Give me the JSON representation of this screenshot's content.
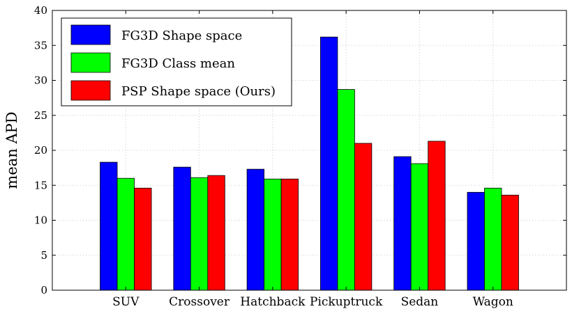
{
  "chart_data": {
    "type": "bar",
    "title": "",
    "xlabel": "",
    "ylabel": "mean APD",
    "ylim": [
      0,
      40
    ],
    "yticks": [
      0,
      5,
      10,
      15,
      20,
      25,
      30,
      35,
      40
    ],
    "grid": true,
    "legend_position": "top-left",
    "categories": [
      "SUV",
      "Crossover",
      "Hatchback",
      "Pickuptruck",
      "Sedan",
      "Wagon"
    ],
    "series": [
      {
        "name": "FG3D Shape space",
        "color": "#0000ff",
        "values": [
          18.3,
          17.6,
          17.3,
          36.2,
          19.1,
          14.0
        ]
      },
      {
        "name": "FG3D Class mean",
        "color": "#00ff00",
        "values": [
          16.0,
          16.1,
          15.9,
          28.7,
          18.1,
          14.6
        ]
      },
      {
        "name": "PSP Shape space (Ours)",
        "color": "#ff0000",
        "values": [
          14.6,
          16.4,
          15.9,
          21.0,
          21.3,
          13.6
        ]
      }
    ]
  }
}
